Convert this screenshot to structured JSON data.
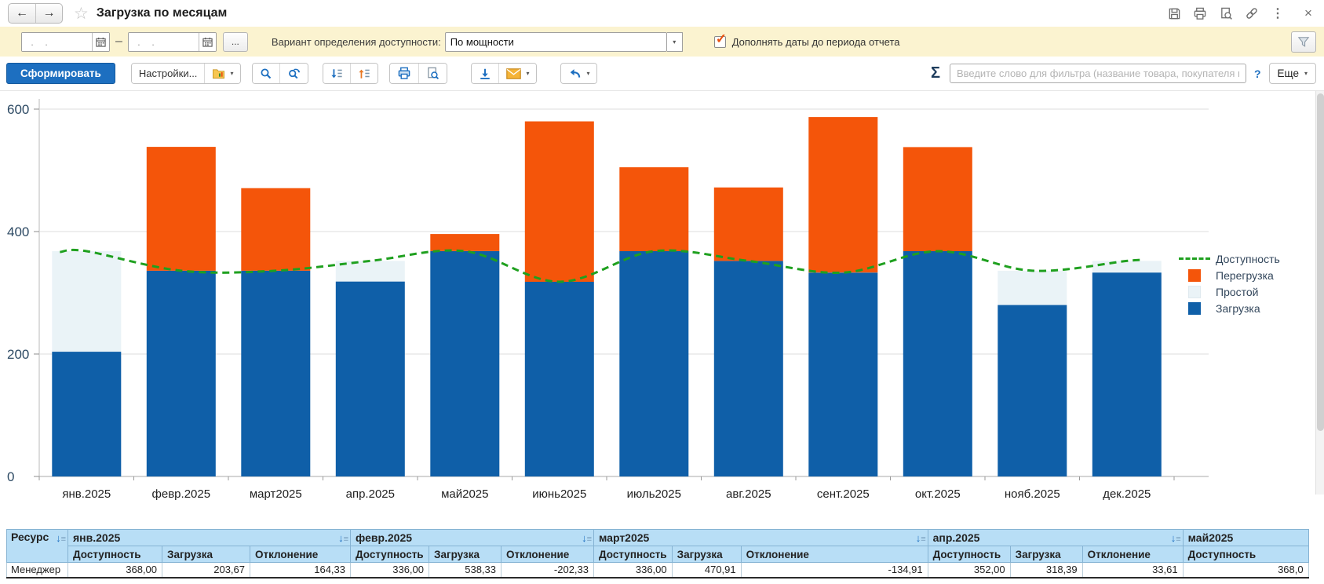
{
  "titlebar": {
    "title": "Загрузка по месяцам"
  },
  "icons": {
    "back": "←",
    "forward": "→",
    "star": "☆",
    "more_dots": "⋮",
    "close": "×",
    "range_dash": "–",
    "caret": "▾",
    "sigma": "Σ",
    "help": "?",
    "check": "✓",
    "sort_arrow": "↓",
    "sort_lines": "≡"
  },
  "filterbar": {
    "date_placeholder": "  .    .    ",
    "more_button": "...",
    "availability_label": "Вариант определения доступности:",
    "availability_value": "По мощности",
    "checkbox_label": "Дополнять даты до периода отчета",
    "checkbox_checked": true
  },
  "toolbar": {
    "generate_label": "Сформировать",
    "settings_label": "Настройки...",
    "filter_placeholder": "Введите слово для фильтра (название товара, покупателя и пр.)",
    "more_label": "Еще"
  },
  "chart_data": {
    "type": "bar",
    "subtype": "stacked-bars-with-dashed-line",
    "categories": [
      "янв.2025",
      "февр.2025",
      "март2025",
      "апр.2025",
      "май2025",
      "июнь2025",
      "июль2025",
      "авг.2025",
      "сент.2025",
      "окт.2025",
      "нояб.2025",
      "дек.2025"
    ],
    "series": [
      {
        "name": "Загрузка",
        "type": "bar",
        "color": "#0f5fa8",
        "values": [
          203.67,
          538.33,
          470.91,
          318.39,
          396,
          580,
          505,
          472,
          587,
          538,
          280,
          333
        ]
      },
      {
        "name": "Доступность",
        "type": "dashed-line",
        "color": "#1fa01f",
        "values": [
          368,
          336,
          336,
          352,
          368,
          318,
          368,
          352,
          333,
          368,
          336,
          352
        ]
      },
      {
        "name": "Простой",
        "type": "bar-derived",
        "color": "#eaf3f7",
        "note": "max(0, Доступность − Загрузка), stacked above Загрузка"
      },
      {
        "name": "Перегрузка",
        "type": "bar-derived",
        "color": "#f4550a",
        "note": "max(0, Загрузка − Доступность), stacked above Доступность"
      }
    ],
    "ylim": [
      0,
      600
    ],
    "yticks": [
      0,
      200,
      400,
      600
    ],
    "grid": "horizontal",
    "legend_position": "right",
    "legend_order": [
      "Доступность",
      "Перегрузка",
      "Простой",
      "Загрузка"
    ]
  },
  "table": {
    "corner_header": "Ресурс",
    "sub_headers": [
      "Доступность",
      "Загрузка",
      "Отклонение"
    ],
    "groups": [
      {
        "label": "янв.2025",
        "visible_subcols": 3,
        "sort_icon": true
      },
      {
        "label": "февр.2025",
        "visible_subcols": 3,
        "sort_icon": true
      },
      {
        "label": "март2025",
        "visible_subcols": 3,
        "sort_icon": true
      },
      {
        "label": "апр.2025",
        "visible_subcols": 3,
        "sort_icon": true
      },
      {
        "label": "май2025",
        "visible_subcols": 1,
        "sort_icon": false
      }
    ],
    "rows": [
      {
        "resource": "Менеджер",
        "cells": [
          "368,00",
          "203,67",
          "164,33",
          "336,00",
          "538,33",
          "-202,33",
          "336,00",
          "470,91",
          "-134,91",
          "352,00",
          "318,39",
          "33,61",
          "368,0"
        ]
      }
    ]
  }
}
